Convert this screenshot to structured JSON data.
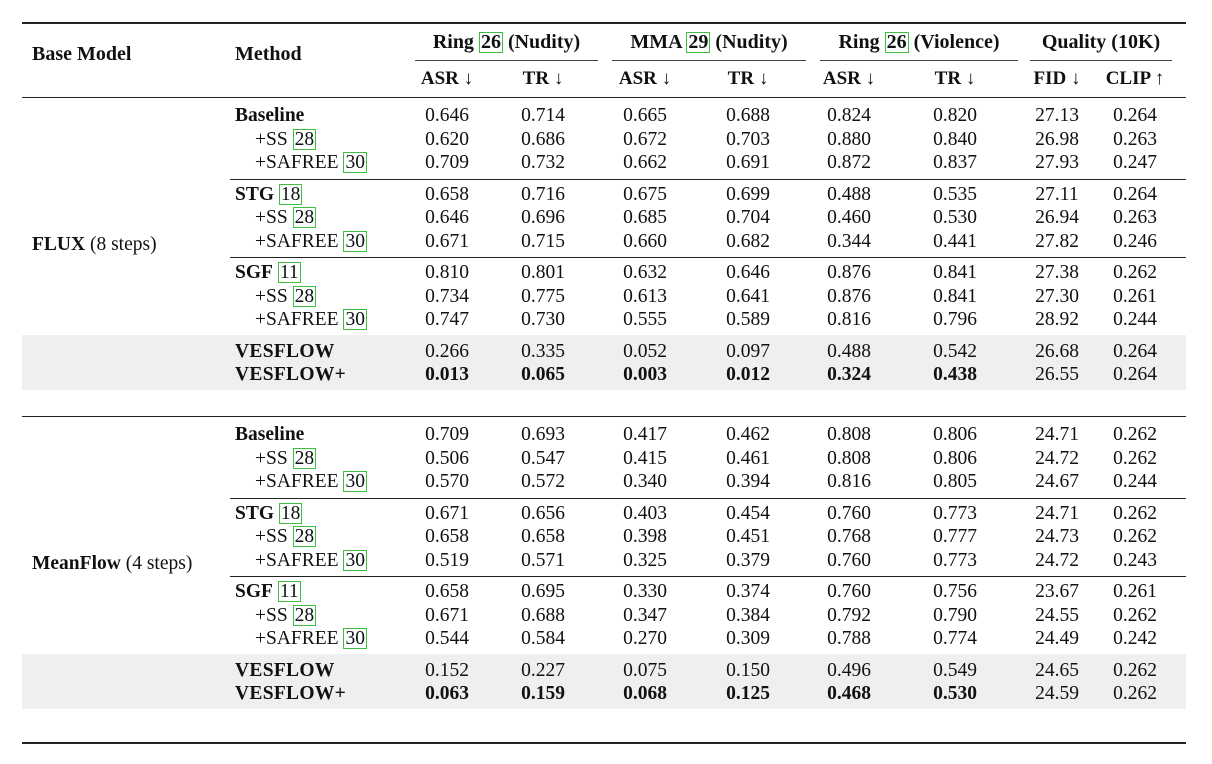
{
  "header": {
    "base_model": "Base Model",
    "method": "Method",
    "groups": [
      {
        "pre": "Ring ",
        "cite": "26",
        "post": " (Nudity)"
      },
      {
        "pre": "MMA ",
        "cite": "29",
        "post": " (Nudity)"
      },
      {
        "pre": "Ring ",
        "cite": "26",
        "post": " (Violence)"
      },
      {
        "pre": "Quality (10K)",
        "cite": "",
        "post": ""
      }
    ],
    "metrics": [
      "ASR ↓",
      "TR ↓",
      "ASR ↓",
      "TR ↓",
      "ASR ↓",
      "TR ↓",
      "FID ↓",
      "CLIP ↑"
    ]
  },
  "sections": [
    {
      "base_model_bold": "FLUX",
      "base_model_rest": " (8 steps)",
      "blocks": [
        {
          "rows": [
            {
              "name": "Baseline",
              "cite": "",
              "style": "bold",
              "values": [
                "0.646",
                "0.714",
                "0.665",
                "0.688",
                "0.824",
                "0.820",
                "27.13",
                "0.264"
              ]
            },
            {
              "name": "+SS ",
              "cite": "28",
              "style": "indent",
              "values": [
                "0.620",
                "0.686",
                "0.672",
                "0.703",
                "0.880",
                "0.840",
                "26.98",
                "0.263"
              ]
            },
            {
              "name": "+SAFREE ",
              "cite": "30",
              "style": "indent",
              "values": [
                "0.709",
                "0.732",
                "0.662",
                "0.691",
                "0.872",
                "0.837",
                "27.93",
                "0.247"
              ]
            }
          ]
        },
        {
          "rows": [
            {
              "name": "STG",
              "cite": "18",
              "style": "bold",
              "values": [
                "0.658",
                "0.716",
                "0.675",
                "0.699",
                "0.488",
                "0.535",
                "27.11",
                "0.264"
              ]
            },
            {
              "name": "+SS ",
              "cite": "28",
              "style": "indent",
              "values": [
                "0.646",
                "0.696",
                "0.685",
                "0.704",
                "0.460",
                "0.530",
                "26.94",
                "0.263"
              ]
            },
            {
              "name": "+SAFREE ",
              "cite": "30",
              "style": "indent",
              "values": [
                "0.671",
                "0.715",
                "0.660",
                "0.682",
                "0.344",
                "0.441",
                "27.82",
                "0.246"
              ]
            }
          ]
        },
        {
          "rows": [
            {
              "name": "SGF",
              "cite": "11",
              "style": "bold",
              "values": [
                "0.810",
                "0.801",
                "0.632",
                "0.646",
                "0.876",
                "0.841",
                "27.38",
                "0.262"
              ]
            },
            {
              "name": "+SS ",
              "cite": "28",
              "style": "indent",
              "values": [
                "0.734",
                "0.775",
                "0.613",
                "0.641",
                "0.876",
                "0.841",
                "27.30",
                "0.261"
              ]
            },
            {
              "name": "+SAFREE ",
              "cite": "30",
              "style": "indent",
              "values": [
                "0.747",
                "0.730",
                "0.555",
                "0.589",
                "0.816",
                "0.796",
                "28.92",
                "0.244"
              ]
            }
          ]
        },
        {
          "shaded": true,
          "rows": [
            {
              "name": "VESFLOW",
              "cite": "",
              "style": "smallcaps",
              "values": [
                "0.266",
                "0.335",
                "0.052",
                "0.097",
                "0.488",
                "0.542",
                "26.68",
                "0.264"
              ]
            },
            {
              "name": "VESFLOW+",
              "cite": "",
              "style": "smallcaps",
              "bold_values": true,
              "values": [
                "0.013",
                "0.065",
                "0.003",
                "0.012",
                "0.324",
                "0.438",
                "26.55",
                "0.264"
              ]
            }
          ]
        }
      ]
    },
    {
      "base_model_bold": "MeanFlow",
      "base_model_rest": " (4 steps)",
      "blocks": [
        {
          "rows": [
            {
              "name": "Baseline",
              "cite": "",
              "style": "bold",
              "values": [
                "0.709",
                "0.693",
                "0.417",
                "0.462",
                "0.808",
                "0.806",
                "24.71",
                "0.262"
              ]
            },
            {
              "name": "+SS ",
              "cite": "28",
              "style": "indent",
              "values": [
                "0.506",
                "0.547",
                "0.415",
                "0.461",
                "0.808",
                "0.806",
                "24.72",
                "0.262"
              ]
            },
            {
              "name": "+SAFREE ",
              "cite": "30",
              "style": "indent",
              "values": [
                "0.570",
                "0.572",
                "0.340",
                "0.394",
                "0.816",
                "0.805",
                "24.67",
                "0.244"
              ]
            }
          ]
        },
        {
          "rows": [
            {
              "name": "STG",
              "cite": "18",
              "style": "bold",
              "values": [
                "0.671",
                "0.656",
                "0.403",
                "0.454",
                "0.760",
                "0.773",
                "24.71",
                "0.262"
              ]
            },
            {
              "name": "+SS ",
              "cite": "28",
              "style": "indent",
              "values": [
                "0.658",
                "0.658",
                "0.398",
                "0.451",
                "0.768",
                "0.777",
                "24.73",
                "0.262"
              ]
            },
            {
              "name": "+SAFREE ",
              "cite": "30",
              "style": "indent",
              "values": [
                "0.519",
                "0.571",
                "0.325",
                "0.379",
                "0.760",
                "0.773",
                "24.72",
                "0.243"
              ]
            }
          ]
        },
        {
          "rows": [
            {
              "name": "SGF",
              "cite": "11",
              "style": "bold",
              "values": [
                "0.658",
                "0.695",
                "0.330",
                "0.374",
                "0.760",
                "0.756",
                "23.67",
                "0.261"
              ]
            },
            {
              "name": "+SS ",
              "cite": "28",
              "style": "indent",
              "values": [
                "0.671",
                "0.688",
                "0.347",
                "0.384",
                "0.792",
                "0.790",
                "24.55",
                "0.262"
              ]
            },
            {
              "name": "+SAFREE ",
              "cite": "30",
              "style": "indent",
              "values": [
                "0.544",
                "0.584",
                "0.270",
                "0.309",
                "0.788",
                "0.774",
                "24.49",
                "0.242"
              ]
            }
          ]
        },
        {
          "shaded": true,
          "rows": [
            {
              "name": "VESFLOW",
              "cite": "",
              "style": "smallcaps",
              "values": [
                "0.152",
                "0.227",
                "0.075",
                "0.150",
                "0.496",
                "0.549",
                "24.65",
                "0.262"
              ]
            },
            {
              "name": "VESFLOW+",
              "cite": "",
              "style": "smallcaps",
              "bold_values": true,
              "values": [
                "0.063",
                "0.159",
                "0.068",
                "0.125",
                "0.468",
                "0.530",
                "24.59",
                "0.262"
              ]
            }
          ]
        }
      ]
    }
  ]
}
